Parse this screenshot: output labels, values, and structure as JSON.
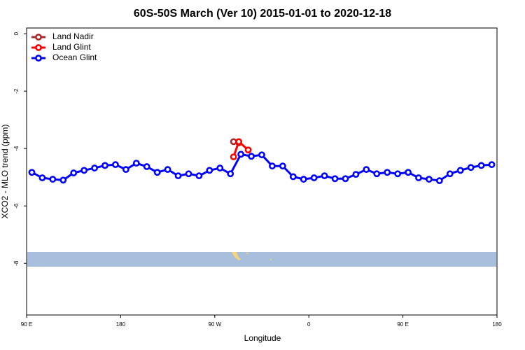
{
  "chart_data": {
    "type": "line",
    "title": "60S-50S March (Ver 10)   2015-01-01 to 2020-12-18",
    "x_label": "Longitude",
    "y_label": "XCO2 - MLO trend (ppm)",
    "xlim": [
      90,
      540
    ],
    "ylim": [
      -9.8,
      0.2
    ],
    "xticks": [
      {
        "value": 90,
        "label": "90 E"
      },
      {
        "value": 180,
        "label": "180"
      },
      {
        "value": 270,
        "label": "90 W"
      },
      {
        "value": 360,
        "label": "0"
      },
      {
        "value": 450,
        "label": "90 E"
      },
      {
        "value": 540,
        "label": "180"
      }
    ],
    "yticks": [
      0,
      -2,
      -4,
      -6,
      -8
    ],
    "legend": "top-left",
    "series": [
      {
        "name": "Land Nadir",
        "color": "#a52a2a",
        "x": [
          288,
          293
        ],
        "values": [
          -3.76,
          -3.8
        ]
      },
      {
        "name": "Land Glint",
        "color": "#ff0000",
        "x": [
          288,
          293,
          302
        ],
        "values": [
          -4.29,
          -3.76,
          -4.05
        ]
      },
      {
        "name": "Ocean Glint",
        "color": "#0000ff",
        "x": [
          95,
          105,
          115,
          125,
          135,
          145,
          155,
          165,
          175,
          185,
          195,
          205,
          215,
          225,
          235,
          245,
          255,
          265,
          275,
          285,
          295,
          305,
          315,
          325,
          335,
          345,
          355,
          365,
          375,
          385,
          395,
          405,
          415,
          425,
          435,
          445,
          455,
          465,
          475,
          485,
          495,
          505,
          515,
          525,
          535
        ],
        "values": [
          -4.83,
          -5.02,
          -5.07,
          -5.1,
          -4.85,
          -4.76,
          -4.68,
          -4.59,
          -4.56,
          -4.73,
          -4.51,
          -4.63,
          -4.83,
          -4.73,
          -4.95,
          -4.88,
          -4.95,
          -4.76,
          -4.68,
          -4.88,
          -4.2,
          -4.27,
          -4.22,
          -4.61,
          -4.61,
          -4.98,
          -5.07,
          -5.02,
          -4.95,
          -5.05,
          -5.05,
          -4.9,
          -4.73,
          -4.88,
          -4.83,
          -4.88,
          -4.83,
          -5.02,
          -5.07,
          -5.12,
          -4.88,
          -4.76,
          -4.66,
          -4.59,
          -4.56
        ]
      }
    ]
  }
}
